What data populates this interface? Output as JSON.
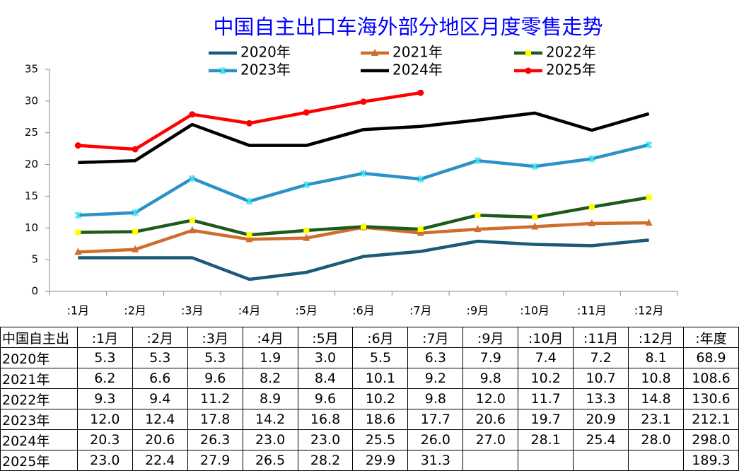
{
  "chart_data": {
    "type": "line",
    "title": "中国自主出口车海外部分地区月度零售走势",
    "categories": [
      ":1月",
      ":2月",
      ":3月",
      ":4月",
      ":5月",
      ":6月",
      ":7月",
      ":9月",
      ":10月",
      ":11月",
      ":12月"
    ],
    "series": [
      {
        "name": "2020年",
        "color": "#1b5a78",
        "marker": "none",
        "values": [
          5.3,
          5.3,
          5.3,
          1.9,
          3.0,
          5.5,
          6.3,
          7.9,
          7.4,
          7.2,
          8.1
        ]
      },
      {
        "name": "2021年",
        "color": "#cf6d2d",
        "marker": "triangle",
        "values": [
          6.2,
          6.6,
          9.6,
          8.2,
          8.4,
          10.1,
          9.2,
          9.8,
          10.2,
          10.7,
          10.8
        ]
      },
      {
        "name": "2022年",
        "color": "#1d5a1d",
        "marker": "square",
        "marker_color": "#ffff00",
        "values": [
          9.3,
          9.4,
          11.2,
          8.9,
          9.6,
          10.2,
          9.8,
          12.0,
          11.7,
          13.3,
          14.8
        ]
      },
      {
        "name": "2023年",
        "color": "#2a93c6",
        "marker": "star",
        "marker_color": "#40e0f0",
        "values": [
          12.0,
          12.4,
          17.8,
          14.2,
          16.8,
          18.6,
          17.7,
          20.6,
          19.7,
          20.9,
          23.1
        ]
      },
      {
        "name": "2024年",
        "color": "#000000",
        "marker": "none",
        "values": [
          20.3,
          20.6,
          26.3,
          23.0,
          23.0,
          25.5,
          26.0,
          27.0,
          28.1,
          25.4,
          28.0
        ]
      },
      {
        "name": "2025年",
        "color": "#ff0000",
        "marker": "circle",
        "values": [
          23.0,
          22.4,
          27.9,
          26.5,
          28.2,
          29.9,
          31.3,
          null,
          null,
          null,
          null
        ]
      }
    ],
    "ylim": [
      0,
      35
    ],
    "yticks": [
      0,
      5,
      10,
      15,
      20,
      25,
      30,
      35
    ],
    "grid": false
  },
  "table": {
    "header": [
      "中国自主出",
      ":1月",
      ":2月",
      ":3月",
      ":4月",
      ":5月",
      ":6月",
      ":7月",
      ":9月",
      ":10月",
      ":11月",
      ":12月",
      ":年度"
    ],
    "rows": [
      [
        "2020年",
        "5.3",
        "5.3",
        "5.3",
        "1.9",
        "3.0",
        "5.5",
        "6.3",
        "7.9",
        "7.4",
        "7.2",
        "8.1",
        "68.9"
      ],
      [
        "2021年",
        "6.2",
        "6.6",
        "9.6",
        "8.2",
        "8.4",
        "10.1",
        "9.2",
        "9.8",
        "10.2",
        "10.7",
        "10.8",
        "108.6"
      ],
      [
        "2022年",
        "9.3",
        "9.4",
        "11.2",
        "8.9",
        "9.6",
        "10.2",
        "9.8",
        "12.0",
        "11.7",
        "13.3",
        "14.8",
        "130.6"
      ],
      [
        "2023年",
        "12.0",
        "12.4",
        "17.8",
        "14.2",
        "16.8",
        "18.6",
        "17.7",
        "20.6",
        "19.7",
        "20.9",
        "23.1",
        "212.1"
      ],
      [
        "2024年",
        "20.3",
        "20.6",
        "26.3",
        "23.0",
        "23.0",
        "25.5",
        "26.0",
        "27.0",
        "28.1",
        "25.4",
        "28.0",
        "298.0"
      ],
      [
        "2025年",
        "23.0",
        "22.4",
        "27.9",
        "26.5",
        "28.2",
        "29.9",
        "31.3",
        "",
        "",
        "",
        "",
        "189.3"
      ]
    ]
  }
}
